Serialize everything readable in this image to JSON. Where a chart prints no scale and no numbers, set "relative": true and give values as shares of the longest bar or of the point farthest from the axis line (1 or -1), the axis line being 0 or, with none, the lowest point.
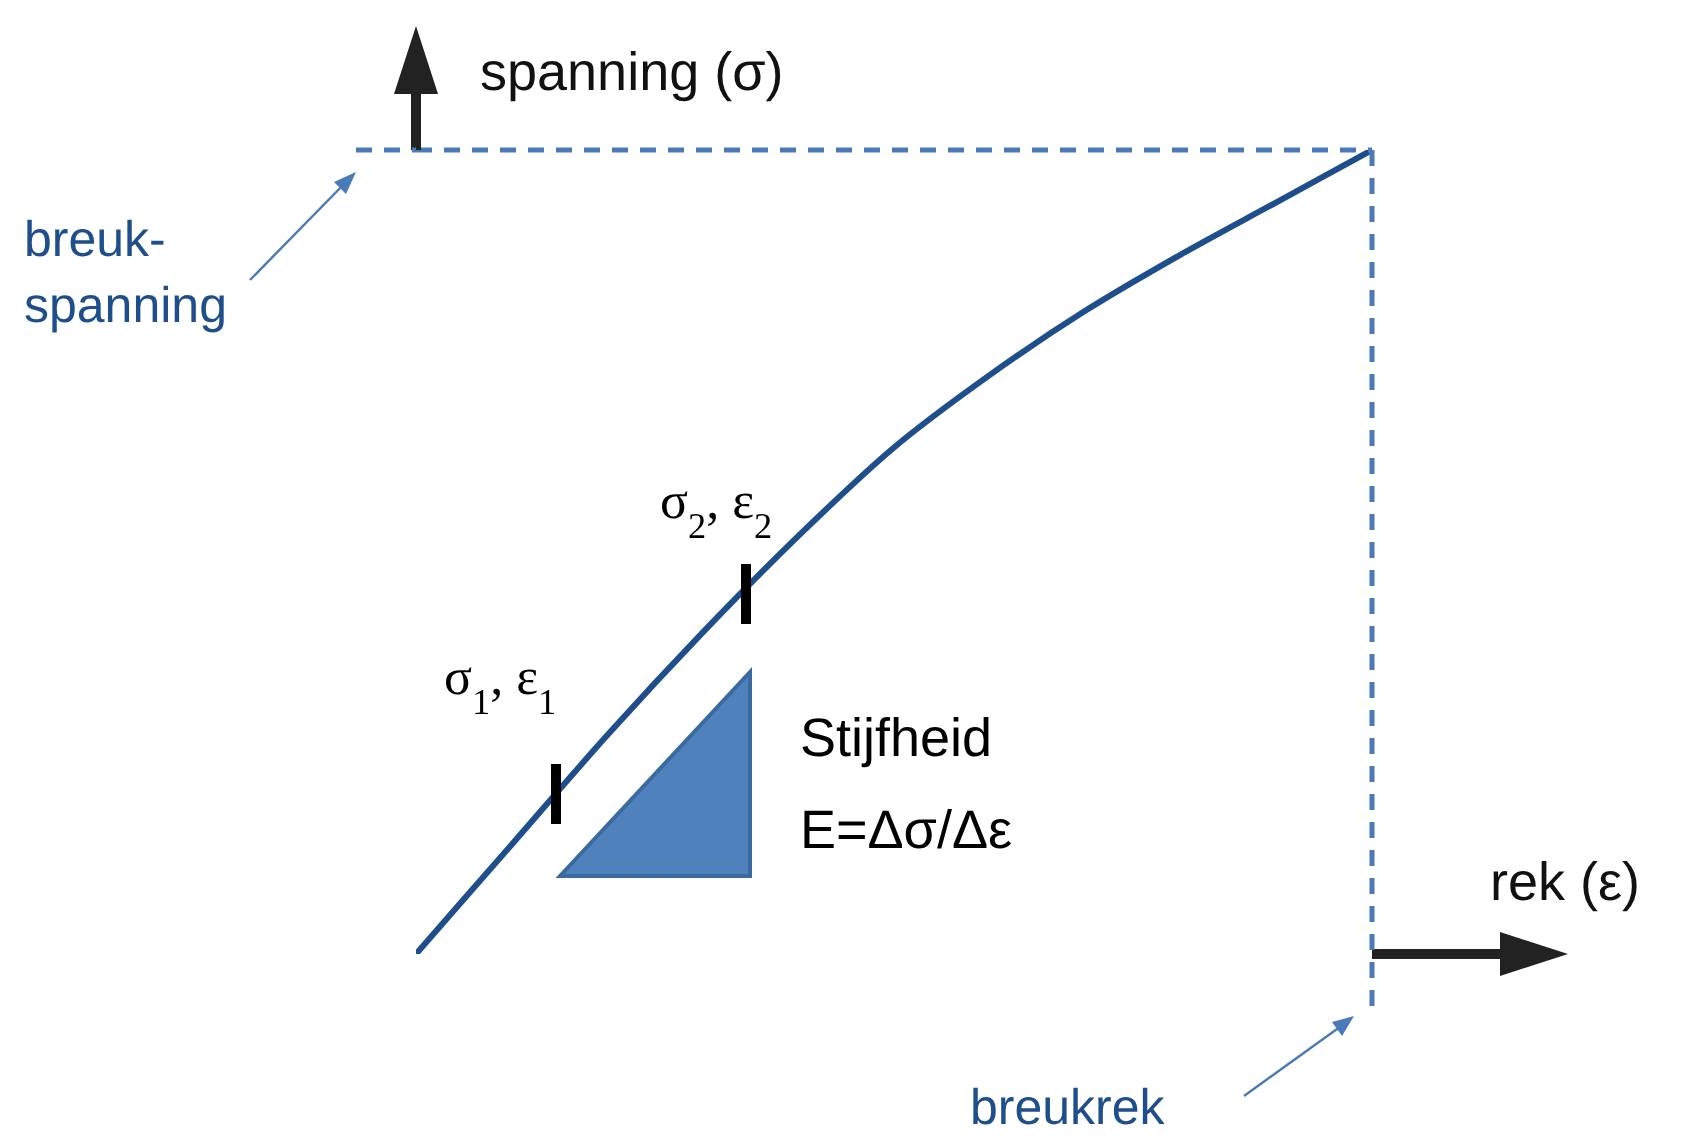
{
  "chart_data": {
    "type": "line",
    "relative": true,
    "xlabel": "rek (ε)",
    "ylabel": "spanning (σ)",
    "categories": [
      null,
      null,
      null,
      null,
      null,
      null,
      null,
      null,
      null,
      null,
      null
    ],
    "series": [
      {
        "color": "#1f4e8c",
        "values": [
          0,
          0.136,
          0.272,
          0.4,
          0.52,
          0.63,
          0.72,
          0.8,
          0.87,
          0.935,
          1
        ]
      }
    ],
    "ref_lines": [
      {
        "axis": "y",
        "value": 1,
        "label": "breuk-\nspanning",
        "color": "#4a7ab8",
        "line_style": "dashed"
      },
      {
        "axis": "x",
        "label": "breukrek",
        "color": "#4a7ab8",
        "line_style": "dashed"
      }
    ],
    "annotations": [
      "σ$_{1}$, ε$_{1}$",
      "σ$_{2}$, ε$_{2}$",
      "Stijfheid",
      "E=Δσ/Δε"
    ],
    "marker": "none",
    "line_style": "solid"
  }
}
